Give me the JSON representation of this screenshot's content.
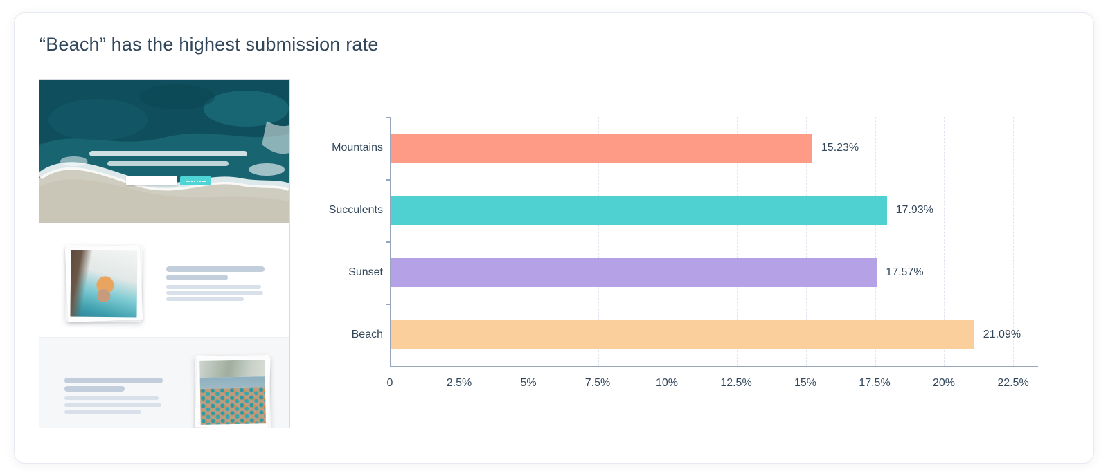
{
  "page": {
    "title": "“Beach” has the highest submission rate"
  },
  "thumbnail": {
    "type": "landing-page-preview",
    "hero_image": "aerial-ocean-wave-beach-photo",
    "photo1": "hand-holding-seashell-polaroid",
    "photo2": "beach-with-teal-umbrellas-polaroid",
    "button_color": "#4fd5d6"
  },
  "chart_data": {
    "type": "bar",
    "orientation": "horizontal",
    "title": "“Beach” has the highest submission rate",
    "xlabel": "",
    "ylabel": "",
    "categories": [
      "Mountains",
      "Succulents",
      "Sunset",
      "Beach"
    ],
    "values": [
      15.23,
      17.93,
      17.57,
      21.09
    ],
    "value_labels": [
      "15.23%",
      "17.93%",
      "17.57%",
      "21.09%"
    ],
    "bar_colors": [
      "#fd9b86",
      "#4fd1d2",
      "#b5a1e5",
      "#fbcf9c"
    ],
    "x_ticks": [
      0,
      2.5,
      5,
      7.5,
      10,
      12.5,
      15,
      17.5,
      20,
      22.5
    ],
    "x_tick_labels": [
      "0",
      "2.5%",
      "5%",
      "7.5%",
      "10%",
      "12.5%",
      "15%",
      "17.5%",
      "20%",
      "22.5%"
    ],
    "xlim": [
      0,
      23.4
    ],
    "grid": "vertical-dashed",
    "legend": "none",
    "axis_color": "#97a6bd",
    "label_color": "#33475b"
  }
}
